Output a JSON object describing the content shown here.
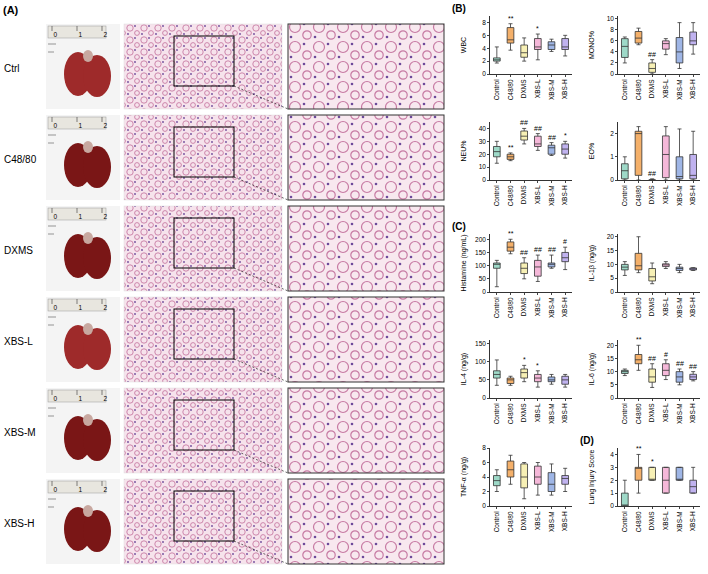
{
  "panel_a": {
    "letter": "(A)",
    "rows": [
      "Ctrl",
      "C48/80",
      "DXMS",
      "XBS-L",
      "XBS-M",
      "XBS-H"
    ],
    "ruler_ticks": [
      0,
      1,
      2
    ]
  },
  "chart_data": [
    {
      "type": "box",
      "panel": "(B)",
      "y_label": "WBC",
      "categories": [
        "Control",
        "C48/80",
        "DXMS",
        "XBS-L",
        "XBS-M",
        "XBS-H"
      ],
      "colors": [
        "#9ed9c8",
        "#f4b06a",
        "#f7f0b5",
        "#f5b8d9",
        "#9fb6e6",
        "#c0b2ef"
      ],
      "min": [
        1.7,
        3.7,
        2,
        2.2,
        3.5,
        2.8
      ],
      "q1": [
        2,
        4.8,
        2.6,
        3.8,
        3.8,
        3.8
      ],
      "median": [
        2.2,
        5.3,
        3.3,
        4.2,
        4.5,
        4.2
      ],
      "q3": [
        2.5,
        7.2,
        4.5,
        5.5,
        5,
        5.5
      ],
      "max": [
        4.2,
        7.8,
        5.6,
        6.2,
        5.4,
        6
      ],
      "annotations": [
        null,
        "**",
        null,
        "*",
        null,
        null
      ],
      "ylim": [
        0,
        9
      ],
      "yticks": [
        0,
        2,
        4,
        6,
        8
      ]
    },
    {
      "type": "box",
      "y_label": "MONO%",
      "categories": [
        "Control",
        "C48/80",
        "DXMS",
        "XBS-L",
        "XBS-M",
        "XBS-H"
      ],
      "colors": [
        "#9ed9c8",
        "#f4b06a",
        "#f7f0b5",
        "#f5b8d9",
        "#9fb6e6",
        "#c0b2ef"
      ],
      "min": [
        2,
        5.3,
        0,
        3.5,
        1,
        3.6
      ],
      "q1": [
        3,
        5.6,
        0.3,
        4.5,
        2,
        5.3
      ],
      "median": [
        5,
        6.5,
        1,
        5.5,
        4,
        6
      ],
      "q3": [
        6.4,
        7.7,
        2,
        6,
        6.6,
        7.6
      ],
      "max": [
        6.7,
        8.3,
        2.6,
        6.4,
        9.3,
        9.3
      ],
      "annotations": [
        null,
        null,
        "##",
        null,
        null,
        null
      ],
      "ylim": [
        0,
        10.5
      ],
      "yticks": [
        0,
        2,
        4,
        6,
        8,
        10
      ]
    },
    {
      "type": "box",
      "y_label": "NEU%",
      "categories": [
        "Control",
        "C48/80",
        "DXMS",
        "XBS-L",
        "XBS-M",
        "XBS-H"
      ],
      "colors": [
        "#9ed9c8",
        "#f4b06a",
        "#f7f0b5",
        "#f5b8d9",
        "#9fb6e6",
        "#c0b2ef"
      ],
      "min": [
        13,
        15,
        28,
        23,
        19,
        17
      ],
      "q1": [
        18,
        16,
        31,
        26,
        20,
        20
      ],
      "median": [
        22,
        18,
        34,
        28,
        25,
        24
      ],
      "q3": [
        26,
        20,
        38,
        34,
        27,
        28
      ],
      "max": [
        30,
        21,
        40,
        36,
        29,
        30
      ],
      "annotations": [
        null,
        "**",
        "##",
        "##",
        "##",
        "*"
      ],
      "ylim": [
        0,
        45
      ],
      "yticks": [
        0,
        10,
        20,
        30,
        40
      ]
    },
    {
      "type": "box",
      "y_label": "EO%",
      "categories": [
        "Control",
        "C48/80",
        "DXMS",
        "XBS-L",
        "XBS-M",
        "XBS-H"
      ],
      "colors": [
        "#9ed9c8",
        "#f4b06a",
        "#f7f0b5",
        "#f5b8d9",
        "#9fb6e6",
        "#c0b2ef"
      ],
      "min": [
        0,
        0,
        0,
        0,
        0,
        0
      ],
      "q1": [
        0.05,
        0.2,
        0,
        0.1,
        0.05,
        0.05
      ],
      "median": [
        0.4,
        2,
        0,
        1.1,
        0.15,
        0.2
      ],
      "q3": [
        0.7,
        2.1,
        0,
        1.9,
        1,
        1.1
      ],
      "max": [
        1,
        2.3,
        0.05,
        2.3,
        2.2,
        2.1
      ],
      "annotations": [
        null,
        null,
        "##",
        null,
        null,
        null
      ],
      "ylim": [
        0,
        2.5
      ],
      "yticks": [
        0,
        1,
        2
      ]
    },
    {
      "type": "box",
      "panel": "(C)",
      "y_label": "Histamine (ng/mL)",
      "categories": [
        "Control",
        "C48/80",
        "DXMS",
        "XBS-L",
        "XBS-M",
        "XBS-H"
      ],
      "colors": [
        "#9ed9c8",
        "#f4b06a",
        "#f7f0b5",
        "#f5b8d9",
        "#9fb6e6",
        "#c0b2ef"
      ],
      "min": [
        20,
        145,
        50,
        40,
        90,
        85
      ],
      "q1": [
        90,
        155,
        70,
        60,
        95,
        115
      ],
      "median": [
        105,
        170,
        90,
        95,
        105,
        130
      ],
      "q3": [
        110,
        190,
        110,
        120,
        110,
        150
      ],
      "max": [
        120,
        200,
        130,
        140,
        140,
        170
      ],
      "annotations": [
        null,
        "**",
        "##",
        "##",
        "##",
        "#"
      ],
      "ylim": [
        0,
        220
      ],
      "yticks": [
        0,
        50,
        100,
        150,
        200
      ]
    },
    {
      "type": "box",
      "y_label": "IL-1β (ng/g)",
      "categories": [
        "Control",
        "C48/80",
        "DXMS",
        "XBS-L",
        "XBS-M",
        "XBS-H"
      ],
      "colors": [
        "#9ed9c8",
        "#f4b06a",
        "#f7f0b5",
        "#f5b8d9",
        "#9fb6e6",
        "#c0b2ef"
      ],
      "min": [
        6,
        7,
        3,
        8.5,
        7,
        7.8
      ],
      "q1": [
        8,
        8,
        4,
        9.2,
        7.8,
        8
      ],
      "median": [
        9,
        9.5,
        5.5,
        9.8,
        8.5,
        8.5
      ],
      "q3": [
        10,
        14,
        8.5,
        10.2,
        9,
        8.7
      ],
      "max": [
        11,
        20,
        10.5,
        11,
        10,
        8.8
      ],
      "annotations": [
        null,
        null,
        null,
        null,
        null,
        null
      ],
      "ylim": [
        0,
        21
      ],
      "yticks": [
        0,
        5,
        10,
        15,
        20
      ]
    },
    {
      "type": "box",
      "y_label": "IL-4 (ng/g)",
      "categories": [
        "Control",
        "C48/80",
        "DXMS",
        "XBS-L",
        "XBS-M",
        "XBS-H"
      ],
      "colors": [
        "#9ed9c8",
        "#f4b06a",
        "#f7f0b5",
        "#f5b8d9",
        "#9fb6e6",
        "#c0b2ef"
      ],
      "min": [
        35,
        35,
        45,
        30,
        38,
        30
      ],
      "q1": [
        55,
        40,
        55,
        45,
        45,
        38
      ],
      "median": [
        65,
        50,
        70,
        55,
        50,
        50
      ],
      "q3": [
        75,
        55,
        80,
        65,
        58,
        60
      ],
      "max": [
        105,
        60,
        90,
        75,
        65,
        65
      ],
      "annotations": [
        null,
        null,
        "*",
        "*",
        null,
        null
      ],
      "ylim": [
        0,
        160
      ],
      "yticks": [
        0,
        50,
        100,
        150
      ]
    },
    {
      "type": "box",
      "y_label": "IL-6 (ng/g)",
      "categories": [
        "Control",
        "C48/80",
        "DXMS",
        "XBS-L",
        "XBS-M",
        "XBS-H"
      ],
      "colors": [
        "#9ed9c8",
        "#f4b06a",
        "#f7f0b5",
        "#f5b8d9",
        "#9fb6e6",
        "#c0b2ef"
      ],
      "min": [
        8.5,
        10.5,
        4,
        7,
        5,
        6.5
      ],
      "q1": [
        9.3,
        13,
        6,
        8.5,
        6,
        7
      ],
      "median": [
        10,
        14.5,
        8,
        10.5,
        8,
        8
      ],
      "q3": [
        10.5,
        16.5,
        11,
        13,
        10,
        9
      ],
      "max": [
        11,
        20,
        13,
        14.5,
        11,
        10
      ],
      "annotations": [
        null,
        "**",
        "##",
        "#",
        "##",
        "##"
      ],
      "ylim": [
        0,
        22
      ],
      "yticks": [
        0,
        5,
        10,
        15,
        20
      ]
    },
    {
      "type": "box",
      "y_label": "TNF-α (ng/g)",
      "categories": [
        "Control",
        "C48/80",
        "DXMS",
        "XBS-L",
        "XBS-M",
        "XBS-H"
      ],
      "colors": [
        "#9ed9c8",
        "#f4b06a",
        "#f7f0b5",
        "#f5b8d9",
        "#9fb6e6",
        "#c0b2ef"
      ],
      "min": [
        2,
        3,
        1,
        1.5,
        1.5,
        2
      ],
      "q1": [
        2.8,
        4,
        2.5,
        3,
        2,
        3
      ],
      "median": [
        3.5,
        5,
        4,
        4,
        3,
        3.8
      ],
      "q3": [
        4.2,
        6.2,
        5.8,
        5.5,
        4.6,
        4.2
      ],
      "max": [
        5,
        7,
        6,
        6,
        5.8,
        5.2
      ],
      "annotations": [
        null,
        null,
        null,
        null,
        null,
        null
      ],
      "ylim": [
        0,
        8
      ],
      "yticks": [
        0,
        2,
        4,
        6,
        8
      ]
    },
    {
      "type": "box",
      "panel": "(D)",
      "y_label": "Lung Injury Score",
      "categories": [
        "Control",
        "C48/80",
        "DXMS",
        "XBS-L",
        "XBS-M",
        "XBS-H"
      ],
      "colors": [
        "#9ed9c8",
        "#f4b06a",
        "#f7f0b5",
        "#f5b8d9",
        "#9fb6e6",
        "#c0b2ef"
      ],
      "min": [
        0,
        1,
        2,
        1,
        2,
        1
      ],
      "q1": [
        0,
        2,
        2,
        1,
        2,
        1
      ],
      "median": [
        0,
        3,
        2,
        2,
        2,
        1.5
      ],
      "q3": [
        1,
        3,
        3,
        3,
        3,
        2
      ],
      "max": [
        2,
        4,
        3,
        3,
        3,
        3
      ],
      "annotations": [
        null,
        "**",
        "*",
        null,
        null,
        null
      ],
      "ylim": [
        0,
        4.5
      ],
      "yticks": [
        0,
        1,
        2,
        3,
        4
      ]
    }
  ]
}
